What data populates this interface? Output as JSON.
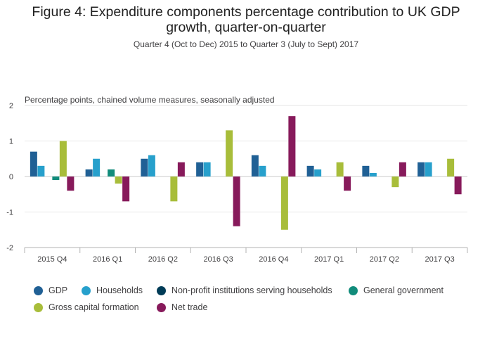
{
  "title_line1": "Figure 4: Expenditure components percentage contribution to UK GDP",
  "title_line2": "growth, quarter-on-quarter",
  "subtitle": "Quarter 4 (Oct to Dec) 2015 to Quarter 3 (July to Sept) 2017",
  "chart_data": {
    "type": "bar",
    "title": "Figure 4: Expenditure components percentage contribution to UK GDP growth, quarter-on-quarter",
    "subtitle": "Quarter 4 (Oct to Dec) 2015 to Quarter 3 (July to Sept) 2017",
    "ylabel": "Percentage points, chained volume measures, seasonally adjusted",
    "xlabel": "",
    "ylim": [
      -2,
      2
    ],
    "yticks": [
      "2",
      "1",
      "0",
      "-1",
      "-2"
    ],
    "ytick_values": [
      2,
      1,
      0,
      -1,
      -2
    ],
    "grid": true,
    "legend_position": "bottom",
    "categories": [
      "2015 Q4",
      "2016 Q1",
      "2016 Q2",
      "2016 Q3",
      "2016 Q4",
      "2017 Q1",
      "2017 Q2",
      "2017 Q3"
    ],
    "series": [
      {
        "name": "GDP",
        "color": "#206095",
        "values": [
          0.7,
          0.2,
          0.5,
          0.4,
          0.6,
          0.3,
          0.3,
          0.4
        ]
      },
      {
        "name": "Households",
        "color": "#27a0cc",
        "values": [
          0.3,
          0.5,
          0.6,
          0.4,
          0.3,
          0.2,
          0.1,
          0.4
        ]
      },
      {
        "name": "Non-profit institutions serving households",
        "color": "#003c57",
        "values": [
          0,
          0,
          0,
          0,
          0,
          0,
          0,
          0
        ]
      },
      {
        "name": "General government",
        "color": "#118c7b",
        "values": [
          -0.1,
          0.2,
          0,
          0,
          0,
          0,
          0,
          0
        ]
      },
      {
        "name": "Gross capital formation",
        "color": "#a8bd3a",
        "values": [
          1.0,
          -0.2,
          -0.7,
          1.3,
          -1.5,
          0.4,
          -0.3,
          0.5
        ]
      },
      {
        "name": "Net trade",
        "color": "#871a5b",
        "values": [
          -0.4,
          -0.7,
          0.4,
          -1.4,
          1.7,
          -0.4,
          0.4,
          -0.5
        ]
      }
    ]
  }
}
